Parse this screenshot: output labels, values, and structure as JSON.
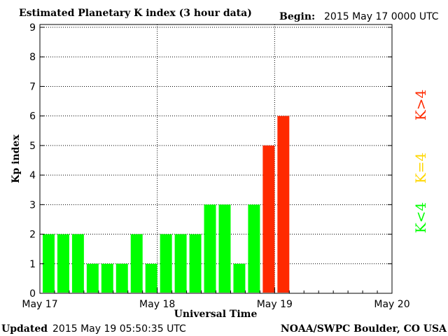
{
  "chart_data": {
    "type": "bar",
    "title": "Estimated Planetary K index (3 hour data)",
    "begin_label": "Begin:",
    "begin_value": "2015 May 17 0000 UTC",
    "ylabel": "Kp index",
    "xlabel": "Universal Time",
    "ylim": [
      0,
      9
    ],
    "y_ticks": [
      "0",
      "1",
      "2",
      "3",
      "4",
      "5",
      "6",
      "7",
      "8",
      "9"
    ],
    "x_ticks": [
      "May 17",
      "May 18",
      "May 19",
      "May 20"
    ],
    "x_days": 3,
    "slots_per_day": 8,
    "values": [
      2,
      2,
      2,
      1,
      1,
      1,
      2,
      1,
      2,
      2,
      2,
      3,
      3,
      1,
      3,
      5,
      6
    ],
    "grid": true,
    "colors": {
      "below": "#00ff00",
      "equal": "#ffd700",
      "above": "#ff2a00"
    },
    "legend": [
      {
        "text": "K<4",
        "color": "#00ff00"
      },
      {
        "text": "K=4",
        "color": "#ffd700"
      },
      {
        "text": "K>4",
        "color": "#ff2a00"
      }
    ]
  },
  "footer": {
    "updated_label": "Updated",
    "updated_value": "2015 May 19 05:50:35 UTC",
    "source": "NOAA/SWPC Boulder, CO USA"
  }
}
